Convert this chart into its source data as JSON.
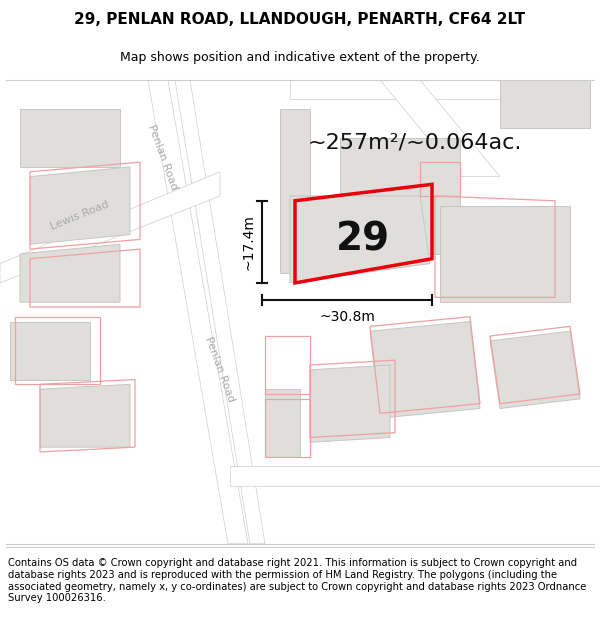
{
  "title": "29, PENLAN ROAD, LLANDOUGH, PENARTH, CF64 2LT",
  "subtitle": "Map shows position and indicative extent of the property.",
  "footer": "Contains OS data © Crown copyright and database right 2021. This information is subject to Crown copyright and database rights 2023 and is reproduced with the permission of HM Land Registry. The polygons (including the associated geometry, namely x, y co-ordinates) are subject to Crown copyright and database rights 2023 Ordnance Survey 100026316.",
  "area_label": "~257m²/~0.064ac.",
  "width_label": "~30.8m",
  "height_label": "~17.4m",
  "number_label": "29",
  "map_bg": "#f7f6f4",
  "road_fill": "#ffffff",
  "road_stroke": "#d0cecc",
  "building_fill": "#e0dedb",
  "building_stroke": "#c8c6c2",
  "red_outline": "#e8000a",
  "pink_outline": "#f0a0a0",
  "road_label_color": "#aaaaaa",
  "dim_line_color": "#111111",
  "title_fontsize": 11,
  "subtitle_fontsize": 9,
  "footer_fontsize": 7.2,
  "area_fontsize": 16,
  "number_fontsize": 28,
  "dim_fontsize": 10,
  "road_label_fontsize": 8
}
